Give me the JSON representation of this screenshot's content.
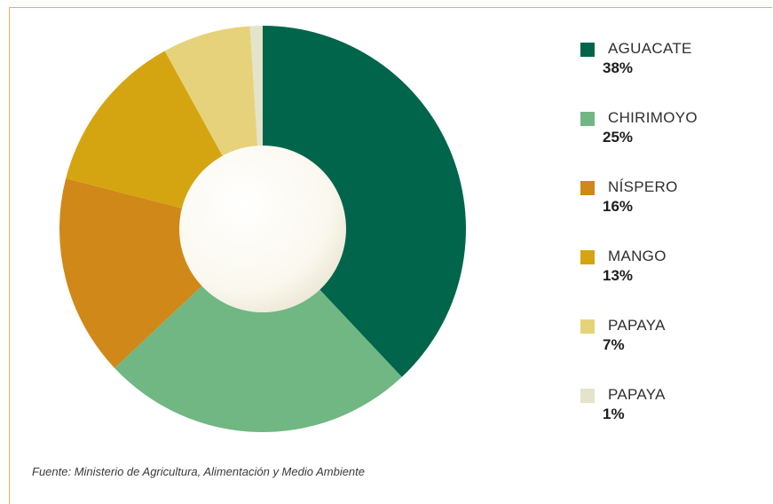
{
  "chart_data": {
    "type": "pie",
    "donut": true,
    "categories": [
      "AGUACATE",
      "CHIRIMOYO",
      "NÍSPERO",
      "MANGO",
      "PAPAYA",
      "PAPAYA"
    ],
    "values": [
      38,
      25,
      16,
      13,
      7,
      1
    ],
    "value_labels": [
      "38%",
      "25%",
      "16%",
      "13%",
      "7%",
      "1%"
    ],
    "colors": [
      "#00654a",
      "#70b783",
      "#d08818",
      "#d5a511",
      "#e6d27a",
      "#e3e4c9"
    ],
    "title": "",
    "legend_position": "right",
    "source": "Fuente: Ministerio de Agricultura, Alimentación y Medio Ambiente"
  },
  "center_color": "#faf8ee",
  "frame_color": "#e5b04a"
}
